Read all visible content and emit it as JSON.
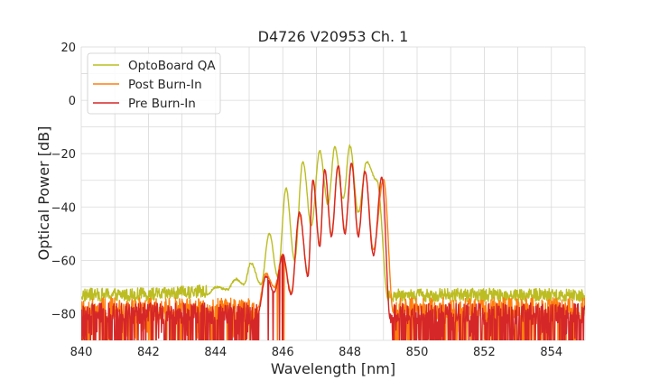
{
  "chart_data": {
    "type": "line",
    "title": "D4726 V20953 Ch. 1",
    "xlabel": "Wavelength [nm]",
    "ylabel": "Optical Power [dB]",
    "xlim": [
      840,
      855
    ],
    "ylim": [
      -90,
      20
    ],
    "xticks": [
      840,
      842,
      844,
      846,
      848,
      850,
      852,
      854
    ],
    "yticks": [
      -80,
      -60,
      -40,
      -20,
      0,
      20
    ],
    "grid": true,
    "legend_position": "top-left",
    "series": [
      {
        "name": "OptoBoard QA",
        "color": "#bcbd22",
        "noise_floor": -73,
        "peaks": [
          [
            844.0,
            -70
          ],
          [
            844.6,
            -67
          ],
          [
            845.05,
            -61
          ],
          [
            845.6,
            -50
          ],
          [
            846.1,
            -33
          ],
          [
            846.6,
            -23
          ],
          [
            847.1,
            -19
          ],
          [
            847.55,
            -17.5
          ],
          [
            848.0,
            -17
          ],
          [
            848.5,
            -23
          ],
          [
            848.8,
            -30
          ]
        ],
        "dips": [
          [
            844.35,
            -71
          ],
          [
            844.85,
            -69
          ],
          [
            845.35,
            -69
          ],
          [
            845.85,
            -66
          ],
          [
            846.35,
            -60
          ],
          [
            846.85,
            -47
          ],
          [
            847.35,
            -39
          ],
          [
            847.8,
            -37
          ],
          [
            848.25,
            -42
          ]
        ],
        "band_end": 849.15
      },
      {
        "name": "Post Burn-In",
        "color": "#ff7f0e",
        "noise_floor": -78,
        "peaks": [
          [
            845.5,
            -65
          ],
          [
            846.0,
            -58
          ],
          [
            846.5,
            -43
          ],
          [
            846.9,
            -30
          ],
          [
            847.25,
            -26
          ],
          [
            847.65,
            -24.5
          ],
          [
            848.05,
            -24
          ],
          [
            848.45,
            -27
          ],
          [
            849.0,
            -29.5
          ]
        ],
        "dips": [
          [
            845.75,
            -70
          ],
          [
            846.25,
            -72
          ],
          [
            846.75,
            -65
          ],
          [
            847.1,
            -54
          ],
          [
            847.45,
            -50
          ],
          [
            847.85,
            -49
          ],
          [
            848.25,
            -50
          ],
          [
            848.7,
            -56
          ]
        ],
        "band_end": 849.3
      },
      {
        "name": "Pre Burn-In",
        "color": "#d62728",
        "noise_floor": -80,
        "peaks": [
          [
            845.5,
            -66
          ],
          [
            846.0,
            -58
          ],
          [
            846.5,
            -42
          ],
          [
            846.9,
            -30
          ],
          [
            847.25,
            -26
          ],
          [
            847.65,
            -24.5
          ],
          [
            848.05,
            -23.5
          ],
          [
            848.45,
            -26.5
          ],
          [
            848.95,
            -29
          ]
        ],
        "dips": [
          [
            845.75,
            -72
          ],
          [
            846.25,
            -73
          ],
          [
            846.75,
            -66
          ],
          [
            847.1,
            -55
          ],
          [
            847.45,
            -51
          ],
          [
            847.85,
            -50
          ],
          [
            848.25,
            -51
          ],
          [
            848.7,
            -58
          ]
        ],
        "band_end": 849.2
      }
    ]
  }
}
